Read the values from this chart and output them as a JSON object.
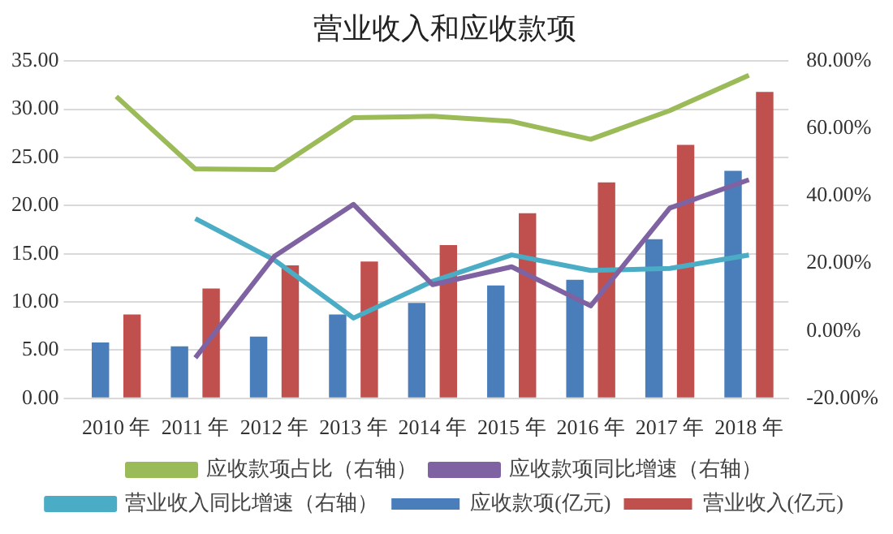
{
  "chart_data": {
    "type": "bar",
    "title": "营业收入和应收款项",
    "categories": [
      "2010 年",
      "2011 年",
      "2012 年",
      "2013 年",
      "2014 年",
      "2015 年",
      "2016 年",
      "2017 年",
      "2018 年"
    ],
    "series": [
      {
        "name": "应收款项(亿元)",
        "color": "#4a7ebb",
        "values": [
          5.8,
          5.4,
          6.4,
          8.7,
          9.9,
          11.7,
          12.3,
          16.5,
          23.6
        ]
      },
      {
        "name": "营业收入(亿元)",
        "color": "#c0504d",
        "values": [
          8.7,
          11.4,
          13.8,
          14.2,
          15.9,
          19.2,
          22.4,
          26.3,
          31.8
        ]
      },
      {
        "name": "应收款项占比（右轴）",
        "type": "line",
        "axis": "y2",
        "color": "#9bbb59",
        "values": [
          69.5,
          48,
          47.8,
          63.2,
          63.6,
          62.1,
          56.8,
          65.3,
          75.8
        ]
      },
      {
        "name": "应收款项同比增速（右轴）",
        "type": "line",
        "axis": "y2",
        "color": "#7f62a1",
        "values": [
          null,
          -8,
          22.1,
          37.5,
          13.7,
          19,
          7.4,
          36.4,
          44.8
        ]
      },
      {
        "name": "营业收入同比增速（右轴）",
        "type": "line",
        "axis": "y2",
        "color": "#4bacc6",
        "values": [
          null,
          33.3,
          21,
          3.8,
          14.7,
          22.5,
          17.9,
          18.5,
          22.5
        ]
      }
    ],
    "ylim": [
      0,
      35
    ],
    "yticks": [
      {
        "value": 0,
        "label": "0.00"
      },
      {
        "value": 5,
        "label": "5.00"
      },
      {
        "value": 10,
        "label": "10.00"
      },
      {
        "value": 15,
        "label": "15.00"
      },
      {
        "value": 20,
        "label": "20.00"
      },
      {
        "value": 25,
        "label": "25.00"
      },
      {
        "value": 30,
        "label": "30.00"
      },
      {
        "value": 35,
        "label": "35.00"
      }
    ],
    "y2lim": [
      -20,
      80
    ],
    "y2ticks": [
      {
        "value": -20,
        "label": "-20.00%"
      },
      {
        "value": 0,
        "label": "0.00%"
      },
      {
        "value": 20,
        "label": "20.00%"
      },
      {
        "value": 40,
        "label": "40.00%"
      },
      {
        "value": 60,
        "label": "60.00%"
      },
      {
        "value": 80,
        "label": "80.00%"
      }
    ],
    "grid": "y",
    "legend": "bottom",
    "marker": "none",
    "line_style": "solid"
  }
}
